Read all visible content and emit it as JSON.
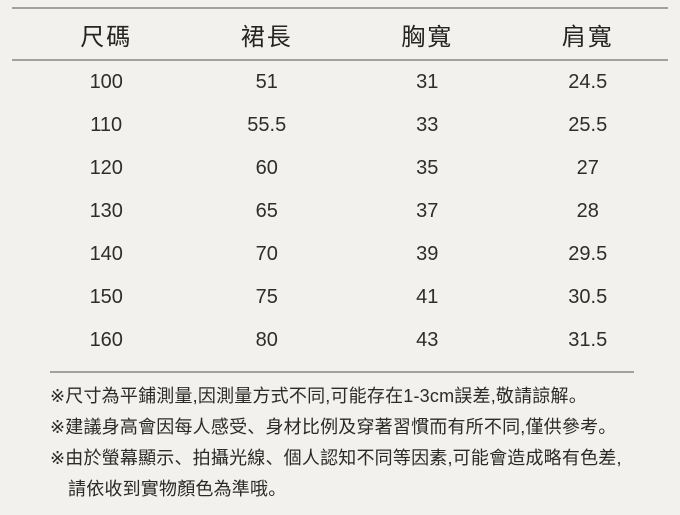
{
  "size_chart": {
    "columns": [
      "尺碼",
      "裙長",
      "胸寬",
      "肩寬"
    ],
    "rows": [
      [
        "100",
        "51",
        "31",
        "24.5"
      ],
      [
        "110",
        "55.5",
        "33",
        "25.5"
      ],
      [
        "120",
        "60",
        "35",
        "27"
      ],
      [
        "130",
        "65",
        "37",
        "28"
      ],
      [
        "140",
        "70",
        "39",
        "29.5"
      ],
      [
        "150",
        "75",
        "41",
        "30.5"
      ],
      [
        "160",
        "80",
        "43",
        "31.5"
      ]
    ]
  },
  "notes": [
    "※尺寸為平鋪測量,因測量方式不同,可能存在1-3cm誤差,敬請諒解。",
    "※建議身高會因每人感受、身材比例及穿著習慣而有所不同,僅供參考。",
    "※由於螢幕顯示、拍攝光線、個人認知不同等因素,可能會造成略有色差,請依收到實物顏色為準哦。"
  ],
  "colors": {
    "background": "#f2f1ee",
    "rule": "#a3a19d",
    "text": "#2e2d2b"
  }
}
